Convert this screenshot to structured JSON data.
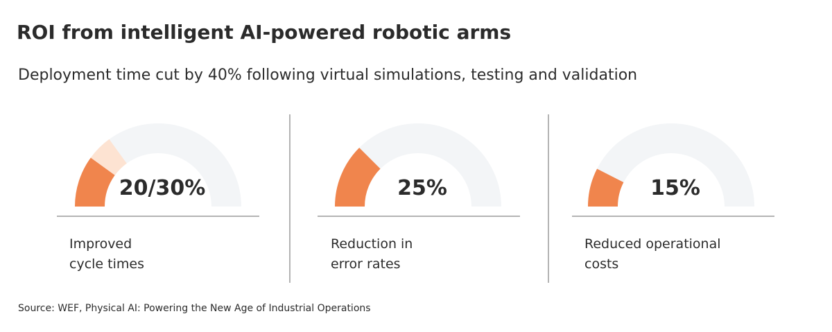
{
  "chart_data": {
    "type": "gauge",
    "title": "ROI from intelligent AI-powered robotic arms",
    "subtitle": "Deployment time cut by 40% following virtual simulations, testing and validation",
    "source": "Source: WEF, Physical AI: Powering the New Age of Industrial Operations",
    "lim": [
      0,
      100
    ],
    "color": "#f0854d",
    "range_color": "#fde3d2",
    "track_color": "#f3f5f7",
    "gauges": [
      {
        "values": [
          20,
          30
        ],
        "value_label": "20/30%",
        "label": [
          "Improved",
          "cycle times"
        ]
      },
      {
        "values": [
          25
        ],
        "value_label": "25%",
        "label": [
          "Reduction in",
          "error rates"
        ]
      },
      {
        "values": [
          15
        ],
        "value_label": "15%",
        "label": [
          "Reduced operational",
          "costs"
        ]
      }
    ]
  }
}
